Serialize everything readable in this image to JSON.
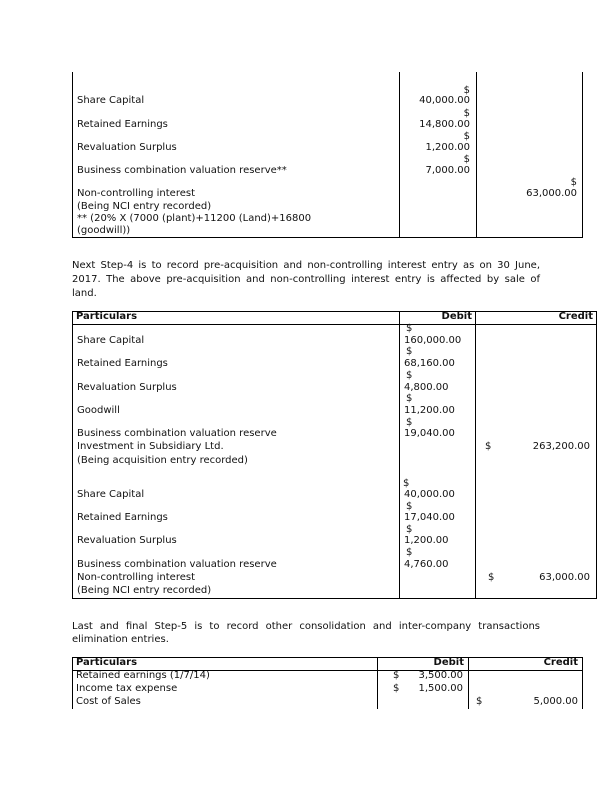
{
  "table1": {
    "rows": [
      {
        "label": "Share Capital",
        "debit_symbol": "$",
        "debit": "40,000.00"
      },
      {
        "label": "Retained Earnings",
        "debit_symbol": "$",
        "debit": "14,800.00"
      },
      {
        "label": "Revaluation Surplus",
        "debit_symbol": "$",
        "debit": "1,200.00"
      },
      {
        "label": "Business combination valuation reserve**",
        "debit_symbol": "$",
        "debit": "7,000.00"
      },
      {
        "label": "Non-controlling interest",
        "credit_symbol": "$",
        "credit": "63,000.00"
      }
    ],
    "narration": "(Being NCI entry recorded)",
    "note_line1": "** (20% X (7000 (plant)+11200 (Land)+16800",
    "note_line2": "(goodwill))"
  },
  "paragraph1": "Next Step-4 is to record pre-acquisition and non-controlling interest entry as on 30 June, 2017. The above pre-acquisition and non-controlling interest entry is affected by sale of land.",
  "table2": {
    "headers": {
      "particulars": "Particulars",
      "debit": "Debit",
      "credit": "Credit"
    },
    "acquisition": [
      {
        "label": "Share Capital",
        "debit_symbol": "$",
        "debit": "160,000.00"
      },
      {
        "label": "Retained Earnings",
        "debit_symbol": "$",
        "debit": "68,160.00"
      },
      {
        "label": "Revaluation Surplus",
        "debit_symbol": "$",
        "debit": "4,800.00"
      },
      {
        "label": "Goodwill",
        "debit_symbol": "$",
        "debit": "11,200.00"
      },
      {
        "label": "Business combination valuation reserve",
        "debit_symbol": "$",
        "debit": "19,040.00"
      },
      {
        "label": "Investment in Subsidiary Ltd.",
        "credit_symbol": "$",
        "credit": "263,200.00"
      }
    ],
    "acquisition_narration": "(Being acquisition entry recorded)",
    "nci": [
      {
        "label": "Share Capital",
        "debit_symbol": "$",
        "debit": "40,000.00"
      },
      {
        "label": "Retained Earnings",
        "debit_symbol": "$",
        "debit": "17,040.00"
      },
      {
        "label": "Revaluation Surplus",
        "debit_symbol": "$",
        "debit": "1,200.00"
      },
      {
        "label": "Business combination valuation reserve",
        "debit_symbol": "$",
        "debit": "4,760.00"
      },
      {
        "label": "Non-controlling interest",
        "credit_symbol": "$",
        "credit": "63,000.00"
      }
    ],
    "nci_narration": "(Being NCI entry recorded)"
  },
  "paragraph2": "Last and final Step-5 is to record other consolidation and inter-company transactions elimination entries.",
  "table3": {
    "headers": {
      "particulars": "Particulars",
      "debit": "Debit",
      "credit": "Credit"
    },
    "rows": [
      {
        "label": "Retained earnings (1/7/14)",
        "debit_symbol": "$",
        "debit": "3,500.00"
      },
      {
        "label": "Income tax expense",
        "debit_symbol": "$",
        "debit": "1,500.00"
      },
      {
        "label": "Cost of Sales",
        "credit_symbol": "$",
        "credit": "5,000.00"
      }
    ]
  }
}
